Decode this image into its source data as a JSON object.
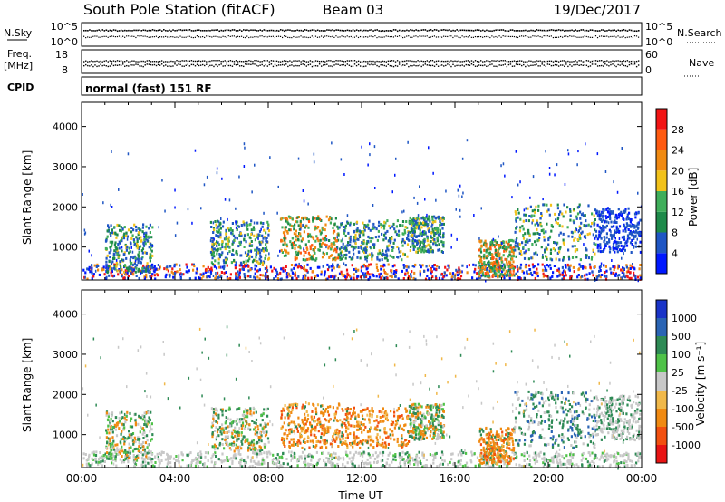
{
  "header": {
    "station": "South Pole Station (fitACF)",
    "beam": "Beam 03",
    "date": "19/Dec/2017"
  },
  "top_panels": {
    "nsky_label": "N.Sky",
    "nsky_ticks": [
      "10^5",
      "10^0"
    ],
    "nsearch_label": "N.Search",
    "nsearch_ticks": [
      "10^5",
      "10^0"
    ],
    "freq_label": "Freq.",
    "freq_unit": "[MHz]",
    "freq_ticks": [
      "18",
      "8"
    ],
    "nave_label": "Nave",
    "nave_ticks": [
      "60",
      "0"
    ],
    "cpid_label": "CPID",
    "cpid_text": "normal (fast) 151 RF"
  },
  "chart_data": [
    {
      "type": "heatmap",
      "name": "power",
      "ylabel": "Slant Range [km]",
      "xlabel": "",
      "xlim": [
        0,
        24
      ],
      "ylim": [
        180,
        4600
      ],
      "y_ticks": [
        "1000",
        "2000",
        "3000",
        "4000"
      ],
      "colorbar_label": "Power [dB]",
      "colorbar_ticks": [
        "4",
        "8",
        "12",
        "16",
        "20",
        "24",
        "28"
      ],
      "colorbar_colors": [
        "#0018ff",
        "#1f56c4",
        "#1e8a4a",
        "#3fae5a",
        "#f2c21a",
        "#f08a12",
        "#ff5a10",
        "#f21414"
      ],
      "echo_regions": [
        {
          "t0": 0.0,
          "t1": 24.0,
          "r0": 180,
          "r1": 600,
          "v": "ground"
        },
        {
          "t0": 1.0,
          "t1": 3.0,
          "r0": 400,
          "r1": 1600,
          "v": "mixed"
        },
        {
          "t0": 5.5,
          "t1": 8.0,
          "r0": 600,
          "r1": 1700,
          "v": "mixed"
        },
        {
          "t0": 8.5,
          "t1": 11.0,
          "r0": 700,
          "r1": 1800,
          "v": "strong"
        },
        {
          "t0": 11.0,
          "t1": 14.0,
          "r0": 700,
          "r1": 1700,
          "v": "mixed"
        },
        {
          "t0": 14.0,
          "t1": 15.5,
          "r0": 900,
          "r1": 1800,
          "v": "mixed"
        },
        {
          "t0": 17.0,
          "t1": 18.5,
          "r0": 300,
          "r1": 1200,
          "v": "strong"
        },
        {
          "t0": 18.5,
          "t1": 22.0,
          "r0": 700,
          "r1": 2100,
          "v": "mixed"
        },
        {
          "t0": 22.0,
          "t1": 24.0,
          "r0": 900,
          "r1": 2000,
          "v": "weak"
        }
      ]
    },
    {
      "type": "heatmap",
      "name": "velocity",
      "ylabel": "Slant Range [km]",
      "xlabel": "Time UT",
      "xlim": [
        0,
        24
      ],
      "ylim": [
        180,
        4600
      ],
      "x_ticks": [
        "00:00",
        "04:00",
        "08:00",
        "12:00",
        "16:00",
        "20:00",
        "00:00"
      ],
      "y_ticks": [
        "1000",
        "2000",
        "3000",
        "4000"
      ],
      "colorbar_label": "Velocity [m s⁻¹]",
      "colorbar_ticks": [
        "1000",
        "500",
        "100",
        "25",
        "-25",
        "-100",
        "-500",
        "-1000"
      ],
      "colorbar_colors": [
        "#1a34c8",
        "#2a64b4",
        "#2e8a55",
        "#4fc248",
        "#c8c8c8",
        "#f0b84a",
        "#f08a12",
        "#f25010",
        "#e81414"
      ],
      "echo_regions": [
        {
          "t0": 0.0,
          "t1": 24.0,
          "r0": 180,
          "r1": 600,
          "v": "ground"
        },
        {
          "t0": 1.0,
          "t1": 3.0,
          "r0": 400,
          "r1": 1600,
          "v": "mixed"
        },
        {
          "t0": 5.5,
          "t1": 8.0,
          "r0": 600,
          "r1": 1700,
          "v": "mixed"
        },
        {
          "t0": 8.5,
          "t1": 11.0,
          "r0": 700,
          "r1": 1800,
          "v": "toward"
        },
        {
          "t0": 11.0,
          "t1": 14.0,
          "r0": 700,
          "r1": 1700,
          "v": "toward"
        },
        {
          "t0": 14.0,
          "t1": 15.5,
          "r0": 900,
          "r1": 1800,
          "v": "mixed"
        },
        {
          "t0": 17.0,
          "t1": 18.5,
          "r0": 300,
          "r1": 1200,
          "v": "toward"
        },
        {
          "t0": 18.5,
          "t1": 22.0,
          "r0": 700,
          "r1": 2100,
          "v": "away"
        },
        {
          "t0": 22.0,
          "t1": 24.0,
          "r0": 900,
          "r1": 2000,
          "v": "slow"
        }
      ]
    }
  ]
}
